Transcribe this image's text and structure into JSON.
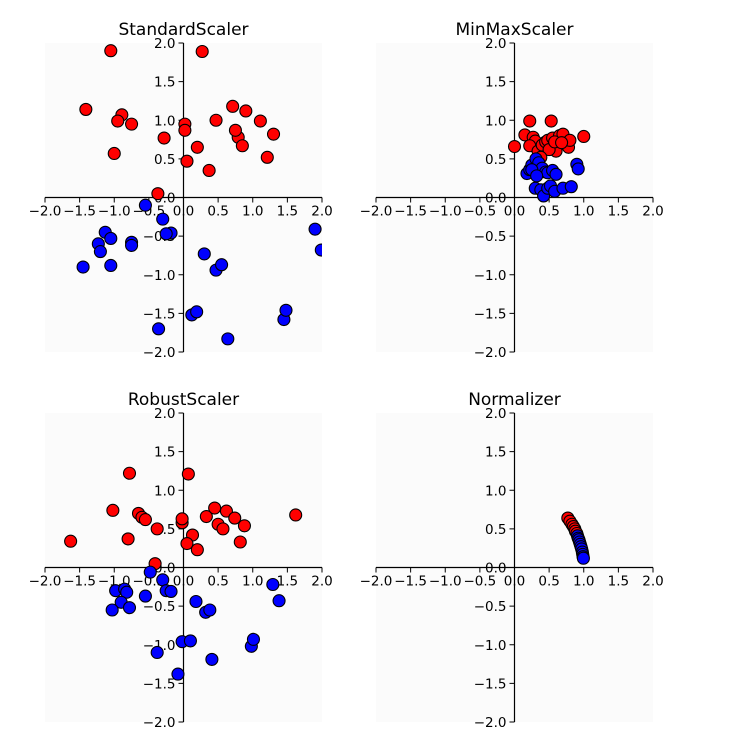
{
  "chart_data": [
    {
      "type": "scatter",
      "title": "StandardScaler",
      "xlim": [
        -2,
        2
      ],
      "ylim": [
        -2,
        2
      ],
      "xticks": [
        "−2.0",
        "−1.5",
        "−1.0",
        "−0.5",
        "0.0",
        "0.5",
        "1.0",
        "1.5",
        "2.0"
      ],
      "yticks": [
        "−2.0",
        "−1.5",
        "−1.0",
        "−0.5",
        "0.0",
        "0.5",
        "1.0",
        "1.5",
        "2.0"
      ],
      "series": [
        {
          "color": "#ff0000",
          "points": [
            [
              -1.05,
              1.9
            ],
            [
              0.27,
              1.89
            ],
            [
              -1.41,
              1.14
            ],
            [
              -0.89,
              1.07
            ],
            [
              -0.95,
              0.99
            ],
            [
              -0.75,
              0.95
            ],
            [
              -0.28,
              0.77
            ],
            [
              -1.0,
              0.57
            ],
            [
              0.02,
              0.95
            ],
            [
              0.02,
              0.87
            ],
            [
              0.37,
              0.35
            ],
            [
              0.2,
              0.65
            ],
            [
              0.05,
              0.47
            ],
            [
              0.47,
              1.0
            ],
            [
              0.71,
              1.18
            ],
            [
              0.9,
              1.12
            ],
            [
              0.79,
              0.78
            ],
            [
              0.85,
              0.67
            ],
            [
              0.75,
              0.87
            ],
            [
              1.11,
              0.99
            ],
            [
              1.3,
              0.82
            ],
            [
              1.21,
              0.52
            ],
            [
              -0.37,
              0.05
            ]
          ]
        },
        {
          "color": "#0000ff",
          "points": [
            [
              -0.55,
              -0.1
            ],
            [
              -0.3,
              -0.28
            ],
            [
              -1.13,
              -0.45
            ],
            [
              -1.05,
              -0.53
            ],
            [
              -1.23,
              -0.6
            ],
            [
              -1.2,
              -0.7
            ],
            [
              -1.45,
              -0.9
            ],
            [
              -1.05,
              -0.88
            ],
            [
              -0.75,
              -0.58
            ],
            [
              -0.75,
              -0.62
            ],
            [
              -0.18,
              -0.46
            ],
            [
              -0.25,
              -0.47
            ],
            [
              0.3,
              -0.73
            ],
            [
              0.47,
              -0.94
            ],
            [
              0.55,
              -0.87
            ],
            [
              0.12,
              -1.52
            ],
            [
              0.19,
              -1.48
            ],
            [
              0.64,
              -1.83
            ],
            [
              -0.36,
              -1.7
            ],
            [
              1.45,
              -1.58
            ],
            [
              1.48,
              -1.46
            ],
            [
              1.9,
              -0.41
            ],
            [
              1.99,
              -0.68
            ]
          ]
        }
      ]
    },
    {
      "type": "scatter",
      "title": "MinMaxScaler",
      "xlim": [
        -2,
        2
      ],
      "ylim": [
        -2,
        2
      ],
      "xticks": [
        "−2.0",
        "−1.5",
        "−1.0",
        "−0.5",
        "0.0",
        "0.5",
        "1.0",
        "1.5",
        "2.0"
      ],
      "yticks": [
        "−2.0",
        "−1.5",
        "−1.0",
        "−0.5",
        "0.0",
        "0.5",
        "1.0",
        "1.5",
        "2.0"
      ],
      "series": [
        {
          "color": "#ff0000",
          "points": [
            [
              0.0,
              0.66
            ],
            [
              0.15,
              0.81
            ],
            [
              0.22,
              0.99
            ],
            [
              0.27,
              0.78
            ],
            [
              0.3,
              0.73
            ],
            [
              0.22,
              0.67
            ],
            [
              0.34,
              0.6
            ],
            [
              0.4,
              0.68
            ],
            [
              0.45,
              0.72
            ],
            [
              0.48,
              0.74
            ],
            [
              0.53,
              0.99
            ],
            [
              0.55,
              0.77
            ],
            [
              0.6,
              0.6
            ],
            [
              0.65,
              0.8
            ],
            [
              0.7,
              0.82
            ],
            [
              0.72,
              0.7
            ],
            [
              0.78,
              0.65
            ],
            [
              0.8,
              0.74
            ],
            [
              1.0,
              0.79
            ],
            [
              0.5,
              0.62
            ],
            [
              0.58,
              0.72
            ],
            [
              0.68,
              0.71
            ],
            [
              0.38,
              0.52
            ]
          ]
        },
        {
          "color": "#0000ff",
          "points": [
            [
              0.18,
              0.31
            ],
            [
              0.22,
              0.36
            ],
            [
              0.25,
              0.42
            ],
            [
              0.28,
              0.37
            ],
            [
              0.31,
              0.5
            ],
            [
              0.35,
              0.45
            ],
            [
              0.4,
              0.38
            ],
            [
              0.45,
              0.33
            ],
            [
              0.48,
              0.32
            ],
            [
              0.55,
              0.35
            ],
            [
              0.6,
              0.3
            ],
            [
              0.3,
              0.12
            ],
            [
              0.38,
              0.1
            ],
            [
              0.42,
              0.02
            ],
            [
              0.48,
              0.12
            ],
            [
              0.52,
              0.15
            ],
            [
              0.58,
              0.08
            ],
            [
              0.7,
              0.12
            ],
            [
              0.82,
              0.14
            ],
            [
              0.9,
              0.43
            ],
            [
              0.92,
              0.37
            ],
            [
              0.25,
              0.36
            ],
            [
              0.32,
              0.28
            ]
          ]
        }
      ]
    },
    {
      "type": "scatter",
      "title": "RobustScaler",
      "xlim": [
        -2,
        2
      ],
      "ylim": [
        -2,
        2
      ],
      "xticks": [
        "−2.0",
        "−1.5",
        "−1.0",
        "−0.5",
        "0.0",
        "0.5",
        "1.0",
        "1.5",
        "2.0"
      ],
      "yticks": [
        "−2.0",
        "−1.5",
        "−1.0",
        "−0.5",
        "0.0",
        "0.5",
        "1.0",
        "1.5",
        "2.0"
      ],
      "series": [
        {
          "color": "#ff0000",
          "points": [
            [
              -0.78,
              1.22
            ],
            [
              0.07,
              1.21
            ],
            [
              -1.63,
              0.34
            ],
            [
              -1.02,
              0.74
            ],
            [
              -0.8,
              0.37
            ],
            [
              -0.65,
              0.7
            ],
            [
              -0.6,
              0.65
            ],
            [
              -0.55,
              0.62
            ],
            [
              -0.38,
              0.5
            ],
            [
              -0.41,
              0.05
            ],
            [
              -0.02,
              0.58
            ],
            [
              -0.02,
              0.63
            ],
            [
              0.13,
              0.42
            ],
            [
              0.05,
              0.31
            ],
            [
              0.2,
              0.23
            ],
            [
              0.33,
              0.66
            ],
            [
              0.45,
              0.77
            ],
            [
              0.5,
              0.56
            ],
            [
              0.57,
              0.5
            ],
            [
              0.62,
              0.73
            ],
            [
              0.74,
              0.64
            ],
            [
              0.82,
              0.33
            ],
            [
              0.88,
              0.54
            ],
            [
              1.62,
              0.68
            ]
          ]
        },
        {
          "color": "#0000ff",
          "points": [
            [
              -0.48,
              -0.06
            ],
            [
              -0.3,
              -0.16
            ],
            [
              -0.98,
              -0.3
            ],
            [
              -0.85,
              -0.28
            ],
            [
              -0.82,
              -0.32
            ],
            [
              -0.9,
              -0.45
            ],
            [
              -1.03,
              -0.55
            ],
            [
              -0.78,
              -0.52
            ],
            [
              -0.55,
              -0.37
            ],
            [
              -0.25,
              -0.3
            ],
            [
              -0.18,
              -0.31
            ],
            [
              0.18,
              -0.44
            ],
            [
              0.32,
              -0.58
            ],
            [
              0.38,
              -0.55
            ],
            [
              -0.02,
              -0.96
            ],
            [
              0.1,
              -0.95
            ],
            [
              -0.08,
              -1.38
            ],
            [
              -0.38,
              -1.1
            ],
            [
              0.41,
              -1.19
            ],
            [
              0.98,
              -1.02
            ],
            [
              1.01,
              -0.93
            ],
            [
              1.29,
              -0.22
            ],
            [
              1.38,
              -0.43
            ]
          ]
        }
      ]
    },
    {
      "type": "scatter",
      "title": "Normalizer",
      "xlim": [
        -2,
        2
      ],
      "ylim": [
        -2,
        2
      ],
      "xticks": [
        "−2.0",
        "−1.5",
        "−1.0",
        "−0.5",
        "0.0",
        "0.5",
        "1.0",
        "1.5",
        "2.0"
      ],
      "yticks": [
        "−2.0",
        "−1.5",
        "−1.0",
        "−0.5",
        "0.0",
        "0.5",
        "1.0",
        "1.5",
        "2.0"
      ],
      "series": [
        {
          "color": "#ff0000",
          "points": [
            [
              0.77,
              0.64
            ],
            [
              0.8,
              0.6
            ],
            [
              0.83,
              0.56
            ],
            [
              0.85,
              0.53
            ],
            [
              0.87,
              0.5
            ],
            [
              0.88,
              0.47
            ],
            [
              0.9,
              0.44
            ]
          ]
        },
        {
          "color": "#0000ff",
          "points": [
            [
              0.91,
              0.41
            ],
            [
              0.92,
              0.38
            ],
            [
              0.93,
              0.36
            ],
            [
              0.94,
              0.33
            ],
            [
              0.95,
              0.3
            ],
            [
              0.96,
              0.27
            ],
            [
              0.97,
              0.24
            ],
            [
              0.98,
              0.2
            ],
            [
              0.985,
              0.17
            ],
            [
              0.99,
              0.14
            ],
            [
              0.995,
              0.12
            ]
          ]
        }
      ]
    }
  ]
}
